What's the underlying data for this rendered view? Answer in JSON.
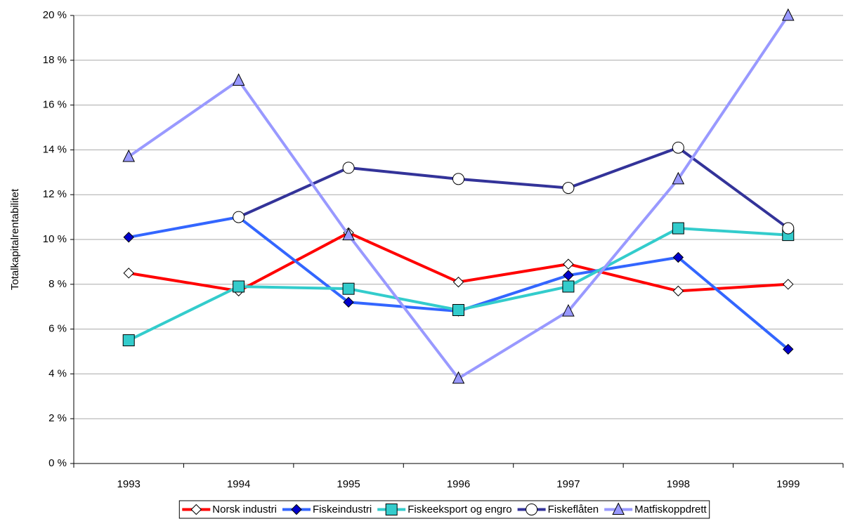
{
  "chart_data": {
    "type": "line",
    "y_label": "Totalkapitalrentabilitet",
    "categories": [
      "1993",
      "1994",
      "1995",
      "1996",
      "1997",
      "1998",
      "1999"
    ],
    "series": [
      {
        "name": "Norsk industri",
        "color": "#ff0000",
        "marker": "diamond",
        "marker_fill": "#ffffff",
        "values": [
          8.5,
          7.7,
          10.3,
          8.1,
          8.9,
          7.7,
          8.0
        ]
      },
      {
        "name": "Fiskeindustri",
        "color": "#3366ff",
        "marker": "diamond",
        "marker_fill": "#0000cc",
        "values": [
          10.1,
          11.0,
          7.2,
          6.8,
          8.4,
          9.2,
          5.1
        ]
      },
      {
        "name": "Fiskeeksport og engro",
        "color": "#33cccc",
        "marker": "square",
        "marker_fill": "#33cccc",
        "values": [
          5.5,
          7.9,
          7.8,
          6.85,
          7.9,
          10.5,
          10.2
        ]
      },
      {
        "name": "Fiskeflåten",
        "color": "#333399",
        "marker": "circle",
        "marker_fill": "#ffffff",
        "values": [
          null,
          11.0,
          13.2,
          12.7,
          12.3,
          14.1,
          10.5
        ]
      },
      {
        "name": "Matfiskoppdrett",
        "color": "#9999ff",
        "marker": "triangle",
        "marker_fill": "#9999ff",
        "values": [
          13.7,
          17.1,
          10.2,
          3.8,
          6.8,
          12.7,
          20.0
        ]
      }
    ],
    "ylim": [
      0,
      20
    ],
    "yticks": [
      {
        "value": 0,
        "label": "0 %"
      },
      {
        "value": 2,
        "label": "2 %"
      },
      {
        "value": 4,
        "label": "4 %"
      },
      {
        "value": 6,
        "label": "6 %"
      },
      {
        "value": 8,
        "label": "8 %"
      },
      {
        "value": 10,
        "label": "10 %"
      },
      {
        "value": 12,
        "label": "12 %"
      },
      {
        "value": 14,
        "label": "14 %"
      },
      {
        "value": 16,
        "label": "16 %"
      },
      {
        "value": 18,
        "label": "18 %"
      },
      {
        "value": 20,
        "label": "20 %"
      }
    ],
    "grid": true,
    "legend": "bottom"
  }
}
